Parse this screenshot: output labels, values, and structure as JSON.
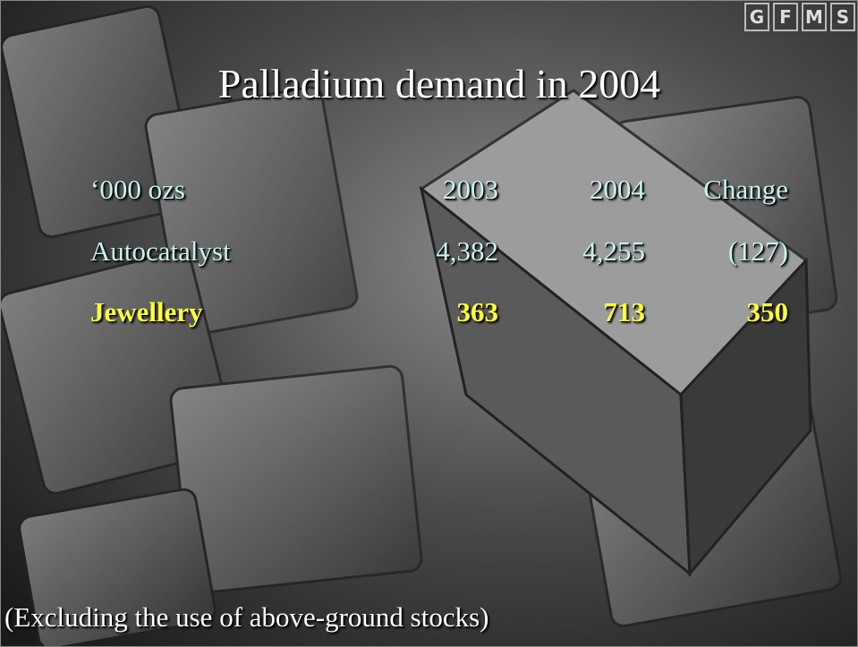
{
  "header": {
    "title": "Palladium demand in 2004",
    "logo": [
      "G",
      "F",
      "M",
      "S"
    ]
  },
  "table": {
    "columns": [
      "‘000 ozs",
      "2003",
      "2004",
      "Change"
    ],
    "rows": [
      [
        "Autocatalyst",
        "4,382",
        "4,255",
        "(127)"
      ],
      [
        "Jewellery",
        "363",
        "713",
        "350"
      ]
    ]
  },
  "footnote": "(Excluding the use of above-ground stocks)"
}
